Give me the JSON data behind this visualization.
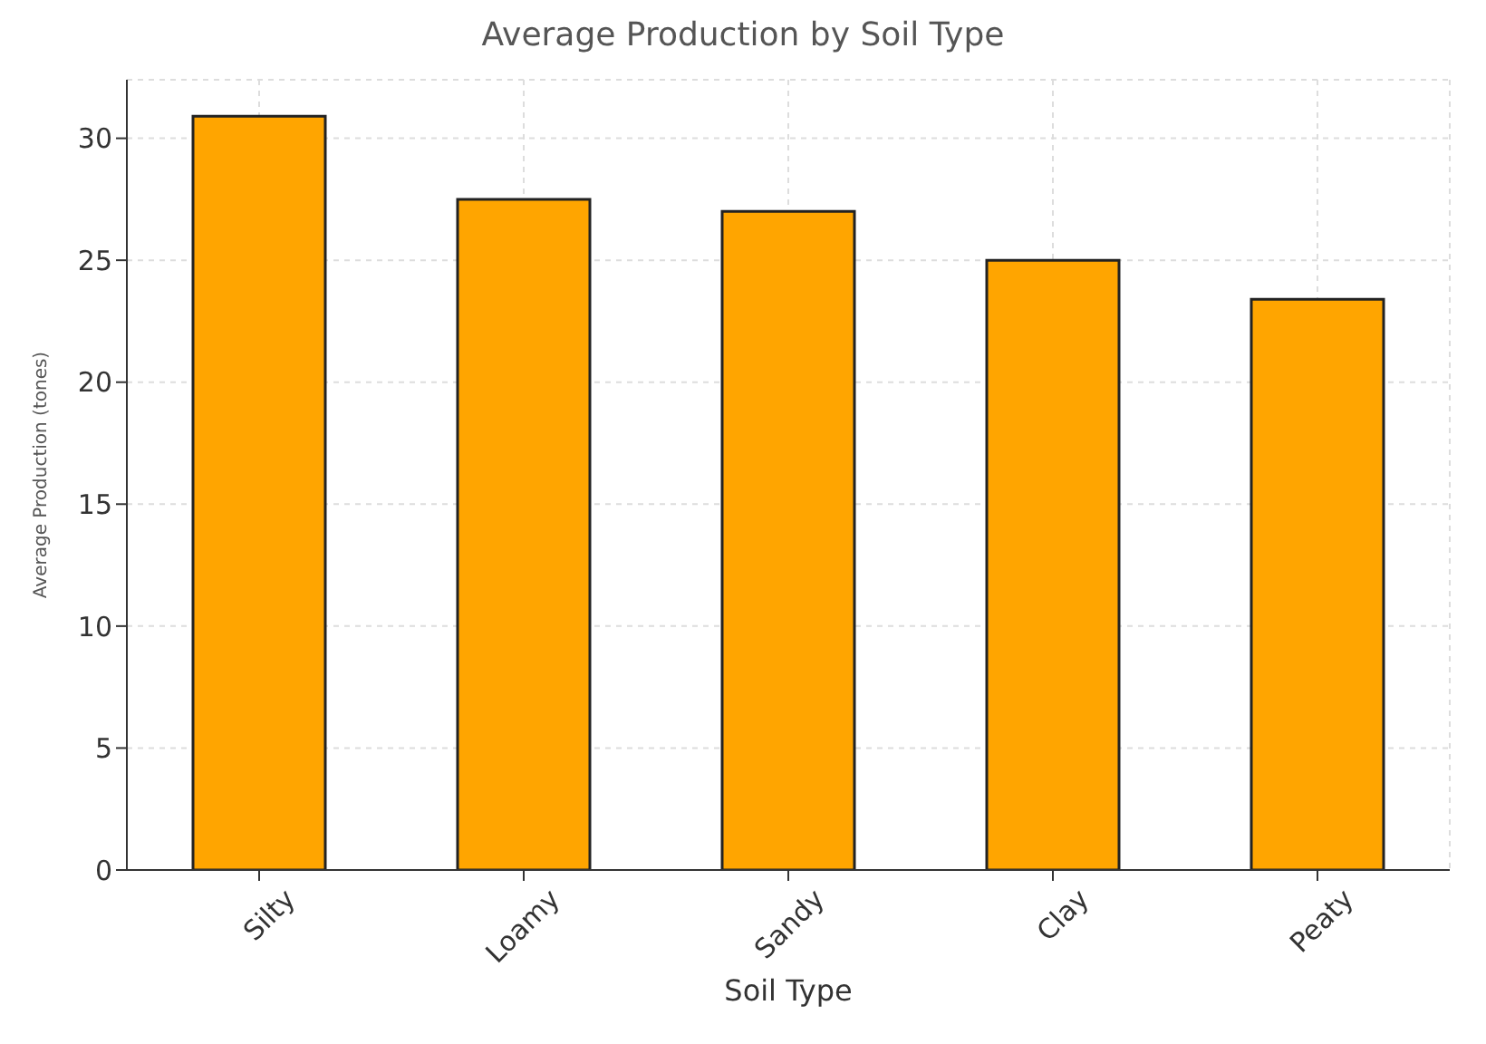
{
  "chart_data": {
    "type": "bar",
    "title": "Average Production by Soil Type",
    "xlabel": "Soil Type",
    "ylabel": "Average Production (tones)",
    "categories": [
      "Silty",
      "Loamy",
      "Sandy",
      "Clay",
      "Peaty"
    ],
    "values": [
      30.9,
      27.5,
      27.0,
      25.0,
      23.4
    ],
    "color": "#ffa500",
    "ylim": [
      0,
      32.4
    ],
    "yticks": [
      0,
      5,
      10,
      15,
      20,
      25,
      30
    ],
    "grid": true
  }
}
